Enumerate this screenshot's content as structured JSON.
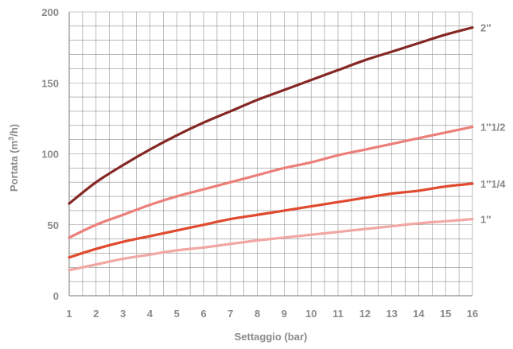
{
  "chart_data": {
    "type": "line",
    "xlabel": "Settaggio (bar)",
    "ylabel_main": "Portata (m",
    "ylabel_sup": "3",
    "ylabel_end": "/h)",
    "xlim": [
      1,
      16
    ],
    "ylim": [
      0,
      200
    ],
    "x_ticks": [
      1,
      2,
      3,
      4,
      5,
      6,
      7,
      8,
      9,
      10,
      11,
      12,
      13,
      14,
      15,
      16
    ],
    "y_ticks": [
      0,
      50,
      100,
      150,
      200
    ],
    "x_minor_step": 0.5,
    "y_minor_step": 10,
    "grid": true,
    "legend": "right, labels at line ends",
    "x": [
      1,
      2,
      3,
      4,
      5,
      6,
      7,
      8,
      9,
      10,
      11,
      12,
      13,
      14,
      15,
      16
    ],
    "series": [
      {
        "name": "2″",
        "color": "#852824",
        "values": [
          65,
          80,
          92,
          103,
          113,
          122,
          130,
          138,
          145,
          152,
          159,
          166,
          172,
          178,
          184,
          189
        ]
      },
      {
        "name": "1″1/2",
        "color": "#ec7f7a",
        "values": [
          41,
          50,
          57,
          64,
          70,
          75,
          80,
          85,
          90,
          94,
          99,
          103,
          107,
          111,
          115,
          119
        ]
      },
      {
        "name": "1″1/4",
        "color": "#e04a2f",
        "values": [
          27,
          33,
          38,
          42,
          46,
          50,
          54,
          57,
          60,
          63,
          66,
          69,
          72,
          74,
          77,
          79
        ]
      },
      {
        "name": "1″",
        "color": "#f1a7a2",
        "values": [
          18,
          22,
          26,
          29,
          32,
          34,
          36.5,
          39,
          41,
          43,
          45,
          47,
          49,
          51,
          52.5,
          54
        ]
      }
    ]
  }
}
